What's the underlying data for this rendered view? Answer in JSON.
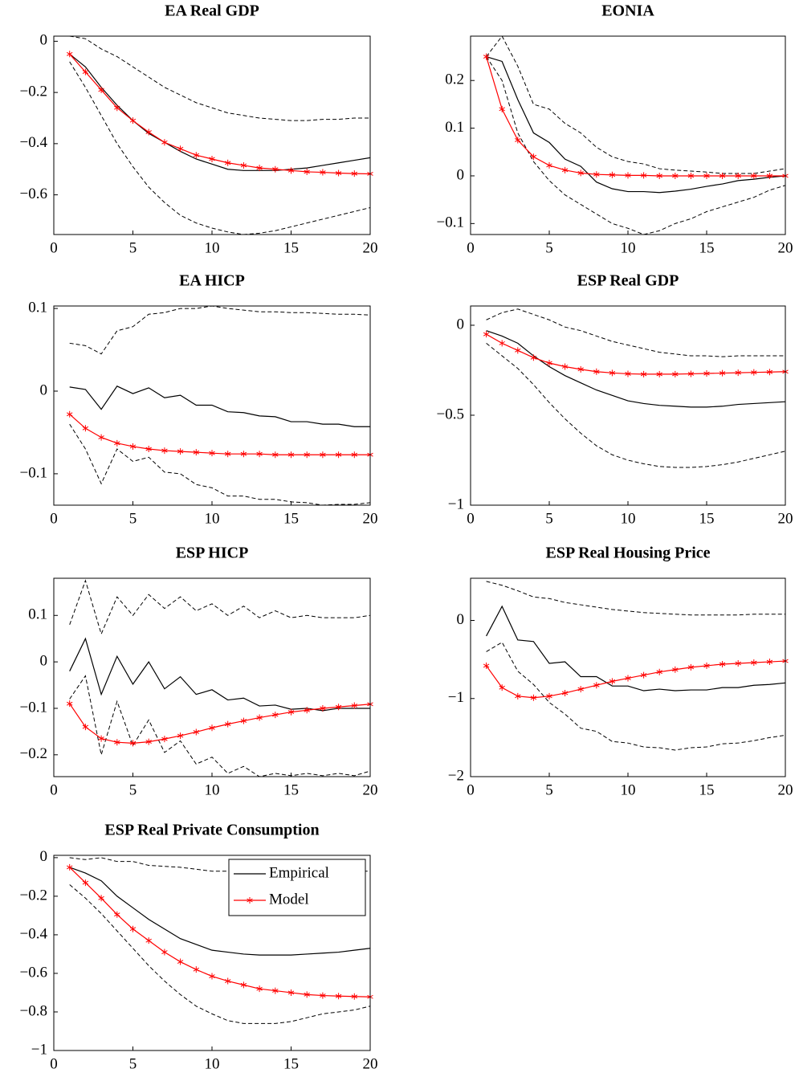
{
  "chart_data": [
    {
      "type": "line",
      "title": "EA Real GDP",
      "x": [
        1,
        2,
        3,
        4,
        5,
        6,
        7,
        8,
        9,
        10,
        11,
        12,
        13,
        14,
        15,
        16,
        17,
        18,
        19,
        20
      ],
      "xlim": [
        0,
        20
      ],
      "xticks": [
        0,
        5,
        10,
        15,
        20
      ],
      "ylim": [
        -0.755,
        0.02
      ],
      "yticks": [
        {
          "value": -0.6,
          "label": "−0.6"
        },
        {
          "value": -0.4,
          "label": "−0.4"
        },
        {
          "value": -0.2,
          "label": "−0.2"
        },
        0
      ],
      "series": [
        {
          "color": "#000000",
          "style": "solid",
          "values": [
            -0.05,
            -0.1,
            -0.18,
            -0.25,
            -0.31,
            -0.36,
            -0.395,
            -0.43,
            -0.46,
            -0.48,
            -0.5,
            -0.505,
            -0.505,
            -0.505,
            -0.5,
            -0.495,
            -0.485,
            -0.475,
            -0.465,
            -0.455
          ]
        },
        {
          "color": "#ff0000",
          "style": "solid",
          "marker": "star",
          "values": [
            -0.05,
            -0.12,
            -0.19,
            -0.26,
            -0.31,
            -0.355,
            -0.395,
            -0.42,
            -0.445,
            -0.46,
            -0.475,
            -0.485,
            -0.495,
            -0.5,
            -0.505,
            -0.51,
            -0.512,
            -0.515,
            -0.517,
            -0.518
          ]
        },
        {
          "color": "#000000",
          "style": "dashed",
          "values": [
            0.02,
            0.01,
            -0.03,
            -0.06,
            -0.1,
            -0.14,
            -0.18,
            -0.21,
            -0.24,
            -0.26,
            -0.28,
            -0.29,
            -0.3,
            -0.305,
            -0.31,
            -0.31,
            -0.305,
            -0.305,
            -0.3,
            -0.3
          ]
        },
        {
          "color": "#000000",
          "style": "dashed",
          "values": [
            -0.08,
            -0.18,
            -0.29,
            -0.4,
            -0.49,
            -0.57,
            -0.63,
            -0.68,
            -0.71,
            -0.73,
            -0.745,
            -0.755,
            -0.75,
            -0.74,
            -0.725,
            -0.71,
            -0.695,
            -0.68,
            -0.665,
            -0.65
          ]
        }
      ]
    },
    {
      "type": "line",
      "title": "EONIA",
      "x": [
        1,
        2,
        3,
        4,
        5,
        6,
        7,
        8,
        9,
        10,
        11,
        12,
        13,
        14,
        15,
        16,
        17,
        18,
        19,
        20
      ],
      "xlim": [
        0,
        20
      ],
      "xticks": [
        0,
        5,
        10,
        15,
        20
      ],
      "ylim": [
        -0.123,
        0.293
      ],
      "yticks": [
        {
          "value": -0.1,
          "label": "−0.1"
        },
        0,
        0.1,
        0.2
      ],
      "series": [
        {
          "color": "#000000",
          "style": "solid",
          "values": [
            0.25,
            0.24,
            0.16,
            0.09,
            0.07,
            0.035,
            0.02,
            -0.013,
            -0.027,
            -0.033,
            -0.033,
            -0.035,
            -0.032,
            -0.028,
            -0.022,
            -0.017,
            -0.01,
            -0.007,
            -0.003,
            0
          ]
        },
        {
          "color": "#ff0000",
          "style": "solid",
          "marker": "star",
          "values": [
            0.25,
            0.14,
            0.075,
            0.04,
            0.022,
            0.012,
            0.006,
            0.003,
            0.002,
            0.001,
            0.001,
            0,
            0,
            0,
            0,
            0,
            0,
            0,
            0,
            0
          ]
        },
        {
          "color": "#000000",
          "style": "dashed",
          "values": [
            0.25,
            0.293,
            0.23,
            0.15,
            0.14,
            0.11,
            0.09,
            0.06,
            0.04,
            0.03,
            0.025,
            0.015,
            0.012,
            0.01,
            0.008,
            0.005,
            0.005,
            0.005,
            0.01,
            0.015
          ]
        },
        {
          "color": "#000000",
          "style": "dashed",
          "values": [
            0.25,
            0.2,
            0.09,
            0.03,
            -0.01,
            -0.04,
            -0.06,
            -0.08,
            -0.1,
            -0.11,
            -0.123,
            -0.115,
            -0.1,
            -0.09,
            -0.075,
            -0.065,
            -0.055,
            -0.045,
            -0.03,
            -0.02
          ]
        }
      ]
    },
    {
      "type": "line",
      "title": "EA HICP",
      "x": [
        1,
        2,
        3,
        4,
        5,
        6,
        7,
        8,
        9,
        10,
        11,
        12,
        13,
        14,
        15,
        16,
        17,
        18,
        19,
        20
      ],
      "xlim": [
        0,
        20
      ],
      "xticks": [
        0,
        5,
        10,
        15,
        20
      ],
      "ylim": [
        -0.138,
        0.103
      ],
      "yticks": [
        {
          "value": -0.1,
          "label": "−0.1"
        },
        0,
        0.1
      ],
      "series": [
        {
          "color": "#000000",
          "style": "solid",
          "values": [
            0.005,
            0.002,
            -0.022,
            0.006,
            -0.003,
            0.004,
            -0.008,
            -0.005,
            -0.017,
            -0.017,
            -0.025,
            -0.026,
            -0.03,
            -0.031,
            -0.037,
            -0.037,
            -0.04,
            -0.04,
            -0.043,
            -0.043
          ]
        },
        {
          "color": "#ff0000",
          "style": "solid",
          "marker": "star",
          "values": [
            -0.028,
            -0.045,
            -0.056,
            -0.063,
            -0.067,
            -0.07,
            -0.072,
            -0.073,
            -0.074,
            -0.075,
            -0.076,
            -0.076,
            -0.076,
            -0.077,
            -0.077,
            -0.077,
            -0.077,
            -0.077,
            -0.077,
            -0.077
          ]
        },
        {
          "color": "#000000",
          "style": "dashed",
          "values": [
            0.058,
            0.055,
            0.045,
            0.073,
            0.078,
            0.093,
            0.095,
            0.1,
            0.1,
            0.103,
            0.1,
            0.098,
            0.096,
            0.096,
            0.095,
            0.095,
            0.094,
            0.093,
            0.093,
            0.092
          ]
        },
        {
          "color": "#000000",
          "style": "dashed",
          "values": [
            -0.04,
            -0.07,
            -0.112,
            -0.07,
            -0.085,
            -0.08,
            -0.098,
            -0.1,
            -0.113,
            -0.117,
            -0.127,
            -0.127,
            -0.131,
            -0.131,
            -0.134,
            -0.135,
            -0.138,
            -0.137,
            -0.137,
            -0.135
          ]
        }
      ]
    },
    {
      "type": "line",
      "title": "ESP Real GDP",
      "x": [
        1,
        2,
        3,
        4,
        5,
        6,
        7,
        8,
        9,
        10,
        11,
        12,
        13,
        14,
        15,
        16,
        17,
        18,
        19,
        20
      ],
      "xlim": [
        0,
        20
      ],
      "xticks": [
        0,
        5,
        10,
        15,
        20
      ],
      "ylim": [
        -1,
        0.107
      ],
      "yticks": [
        {
          "value": -1,
          "label": "−1"
        },
        {
          "value": -0.5,
          "label": "−0.5"
        },
        0
      ],
      "series": [
        {
          "color": "#000000",
          "style": "solid",
          "values": [
            -0.03,
            -0.06,
            -0.1,
            -0.17,
            -0.23,
            -0.28,
            -0.32,
            -0.36,
            -0.39,
            -0.42,
            -0.435,
            -0.445,
            -0.45,
            -0.455,
            -0.455,
            -0.45,
            -0.44,
            -0.435,
            -0.43,
            -0.425
          ]
        },
        {
          "color": "#ff0000",
          "style": "solid",
          "marker": "star",
          "values": [
            -0.05,
            -0.1,
            -0.14,
            -0.18,
            -0.21,
            -0.23,
            -0.245,
            -0.258,
            -0.265,
            -0.27,
            -0.272,
            -0.272,
            -0.272,
            -0.27,
            -0.268,
            -0.266,
            -0.264,
            -0.262,
            -0.26,
            -0.258
          ]
        },
        {
          "color": "#000000",
          "style": "dashed",
          "values": [
            0.03,
            0.07,
            0.09,
            0.06,
            0.03,
            -0.01,
            -0.03,
            -0.06,
            -0.09,
            -0.11,
            -0.13,
            -0.15,
            -0.16,
            -0.17,
            -0.17,
            -0.175,
            -0.17,
            -0.17,
            -0.17,
            -0.17
          ]
        },
        {
          "color": "#000000",
          "style": "dashed",
          "values": [
            -0.1,
            -0.17,
            -0.24,
            -0.33,
            -0.43,
            -0.52,
            -0.6,
            -0.67,
            -0.72,
            -0.75,
            -0.77,
            -0.785,
            -0.79,
            -0.79,
            -0.785,
            -0.775,
            -0.76,
            -0.74,
            -0.72,
            -0.7
          ]
        }
      ]
    },
    {
      "type": "line",
      "title": "ESP HICP",
      "x": [
        1,
        2,
        3,
        4,
        5,
        6,
        7,
        8,
        9,
        10,
        11,
        12,
        13,
        14,
        15,
        16,
        17,
        18,
        19,
        20
      ],
      "xlim": [
        0,
        20
      ],
      "xticks": [
        0,
        5,
        10,
        15,
        20
      ],
      "ylim": [
        -0.247,
        0.18
      ],
      "yticks": [
        {
          "value": -0.2,
          "label": "−0.2"
        },
        {
          "value": -0.1,
          "label": "−0.1"
        },
        0,
        0.1
      ],
      "series": [
        {
          "color": "#000000",
          "style": "solid",
          "values": [
            -0.02,
            0.05,
            -0.07,
            0.012,
            -0.048,
            0,
            -0.058,
            -0.032,
            -0.07,
            -0.06,
            -0.082,
            -0.078,
            -0.095,
            -0.093,
            -0.102,
            -0.1,
            -0.105,
            -0.1,
            -0.1,
            -0.1
          ]
        },
        {
          "color": "#ff0000",
          "style": "solid",
          "marker": "star",
          "values": [
            -0.09,
            -0.14,
            -0.165,
            -0.173,
            -0.175,
            -0.172,
            -0.166,
            -0.159,
            -0.151,
            -0.142,
            -0.134,
            -0.127,
            -0.12,
            -0.114,
            -0.108,
            -0.104,
            -0.1,
            -0.097,
            -0.094,
            -0.091
          ]
        },
        {
          "color": "#000000",
          "style": "dashed",
          "values": [
            0.08,
            0.175,
            0.06,
            0.14,
            0.1,
            0.145,
            0.115,
            0.14,
            0.11,
            0.125,
            0.1,
            0.12,
            0.095,
            0.11,
            0.095,
            0.1,
            0.095,
            0.095,
            0.095,
            0.1
          ]
        },
        {
          "color": "#000000",
          "style": "dashed",
          "values": [
            -0.08,
            -0.03,
            -0.2,
            -0.085,
            -0.18,
            -0.125,
            -0.195,
            -0.17,
            -0.22,
            -0.205,
            -0.24,
            -0.225,
            -0.247,
            -0.24,
            -0.245,
            -0.24,
            -0.245,
            -0.24,
            -0.245,
            -0.235
          ]
        }
      ]
    },
    {
      "type": "line",
      "title": "ESP Real Housing Price",
      "x": [
        1,
        2,
        3,
        4,
        5,
        6,
        7,
        8,
        9,
        10,
        11,
        12,
        13,
        14,
        15,
        16,
        17,
        18,
        19,
        20
      ],
      "xlim": [
        0,
        20
      ],
      "xticks": [
        0,
        5,
        10,
        15,
        20
      ],
      "ylim": [
        -2,
        0.54
      ],
      "yticks": [
        {
          "value": -2,
          "label": "−2"
        },
        {
          "value": -1,
          "label": "−1"
        },
        0
      ],
      "series": [
        {
          "color": "#000000",
          "style": "solid",
          "values": [
            -0.2,
            0.18,
            -0.25,
            -0.27,
            -0.55,
            -0.53,
            -0.72,
            -0.72,
            -0.84,
            -0.84,
            -0.9,
            -0.88,
            -0.9,
            -0.89,
            -0.89,
            -0.86,
            -0.86,
            -0.83,
            -0.82,
            -0.8
          ]
        },
        {
          "color": "#ff0000",
          "style": "solid",
          "marker": "star",
          "values": [
            -0.58,
            -0.86,
            -0.97,
            -0.99,
            -0.97,
            -0.93,
            -0.88,
            -0.83,
            -0.78,
            -0.74,
            -0.7,
            -0.66,
            -0.63,
            -0.6,
            -0.58,
            -0.56,
            -0.55,
            -0.54,
            -0.53,
            -0.52
          ]
        },
        {
          "color": "#000000",
          "style": "dashed",
          "values": [
            0.5,
            0.45,
            0.38,
            0.3,
            0.28,
            0.23,
            0.2,
            0.17,
            0.14,
            0.12,
            0.1,
            0.09,
            0.08,
            0.07,
            0.07,
            0.07,
            0.07,
            0.08,
            0.08,
            0.08
          ]
        },
        {
          "color": "#000000",
          "style": "dashed",
          "values": [
            -0.4,
            -0.28,
            -0.65,
            -0.82,
            -1.05,
            -1.2,
            -1.38,
            -1.42,
            -1.55,
            -1.57,
            -1.62,
            -1.63,
            -1.66,
            -1.63,
            -1.62,
            -1.58,
            -1.57,
            -1.54,
            -1.5,
            -1.47
          ]
        }
      ]
    },
    {
      "type": "line",
      "title": "ESP Real Private Consumption",
      "x": [
        1,
        2,
        3,
        4,
        5,
        6,
        7,
        8,
        9,
        10,
        11,
        12,
        13,
        14,
        15,
        16,
        17,
        18,
        19,
        20
      ],
      "xlim": [
        0,
        20
      ],
      "xticks": [
        0,
        5,
        10,
        15,
        20
      ],
      "ylim": [
        -1,
        0.012
      ],
      "yticks": [
        {
          "value": -1,
          "label": "−1"
        },
        {
          "value": -0.8,
          "label": "−0.8"
        },
        {
          "value": -0.6,
          "label": "−0.6"
        },
        {
          "value": -0.4,
          "label": "−0.4"
        },
        {
          "value": -0.2,
          "label": "−0.2"
        },
        0
      ],
      "legend": "upper right",
      "series": [
        {
          "name": "Empirical",
          "color": "#000000",
          "style": "solid",
          "values": [
            -0.05,
            -0.08,
            -0.12,
            -0.2,
            -0.26,
            -0.32,
            -0.37,
            -0.42,
            -0.45,
            -0.48,
            -0.49,
            -0.5,
            -0.505,
            -0.505,
            -0.505,
            -0.5,
            -0.495,
            -0.49,
            -0.48,
            -0.47
          ]
        },
        {
          "name": "Model",
          "color": "#ff0000",
          "style": "solid",
          "marker": "star",
          "values": [
            -0.05,
            -0.13,
            -0.21,
            -0.295,
            -0.37,
            -0.43,
            -0.49,
            -0.54,
            -0.58,
            -0.615,
            -0.64,
            -0.66,
            -0.68,
            -0.69,
            -0.7,
            -0.71,
            -0.715,
            -0.718,
            -0.72,
            -0.722
          ]
        },
        {
          "color": "#000000",
          "style": "dashed",
          "values": [
            0,
            -0.01,
            0,
            -0.02,
            -0.02,
            -0.04,
            -0.045,
            -0.05,
            -0.06,
            -0.07,
            -0.07,
            -0.075,
            -0.075,
            -0.075,
            -0.07,
            -0.07,
            -0.07,
            -0.075,
            -0.07,
            -0.07
          ]
        },
        {
          "color": "#000000",
          "style": "dashed",
          "values": [
            -0.14,
            -0.21,
            -0.29,
            -0.38,
            -0.47,
            -0.56,
            -0.64,
            -0.71,
            -0.77,
            -0.81,
            -0.845,
            -0.86,
            -0.86,
            -0.86,
            -0.85,
            -0.83,
            -0.81,
            -0.8,
            -0.79,
            -0.77
          ]
        }
      ]
    }
  ]
}
